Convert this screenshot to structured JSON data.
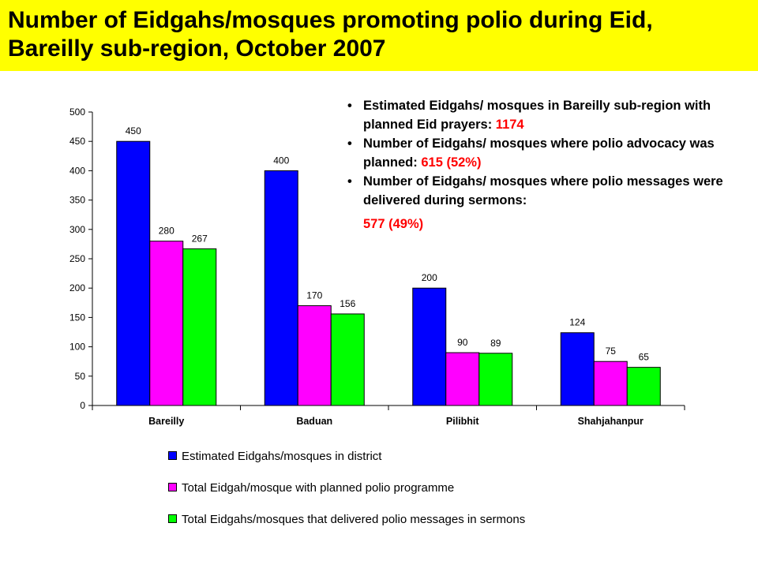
{
  "title": "Number of Eidgahs/mosques promoting polio during Eid, Bareilly sub-region, October 2007",
  "notes": [
    {
      "text": "Estimated Eidgahs/ mosques in Bareilly sub-region with planned Eid prayers: ",
      "value": "1174"
    },
    {
      "text": "Number of Eidgahs/ mosques where polio advocacy was planned: ",
      "value": "615 (52%)"
    },
    {
      "text": "Number of Eidgahs/ mosques where polio messages were delivered during sermons:",
      "value": "577 (49%)"
    }
  ],
  "chart_data": {
    "type": "bar",
    "categories": [
      "Bareilly",
      "Baduan",
      "Pilibhit",
      "Shahjahanpur"
    ],
    "series": [
      {
        "name": "Estimated Eidgahs/mosques in district",
        "values": [
          450,
          400,
          200,
          124
        ],
        "color": "#0000ff"
      },
      {
        "name": "Total Eidgah/mosque with planned polio programme",
        "values": [
          280,
          170,
          90,
          75
        ],
        "color": "#ff00ff"
      },
      {
        "name": "Total Eidgahs/mosques that delivered polio messages in sermons",
        "values": [
          267,
          156,
          89,
          65
        ],
        "color": "#00ff00"
      }
    ],
    "ylim": [
      0,
      500
    ],
    "yticks": [
      0,
      50,
      100,
      150,
      200,
      250,
      300,
      350,
      400,
      450,
      500
    ],
    "xlabel": "",
    "ylabel": "",
    "grid": false,
    "legend_position": "bottom"
  }
}
